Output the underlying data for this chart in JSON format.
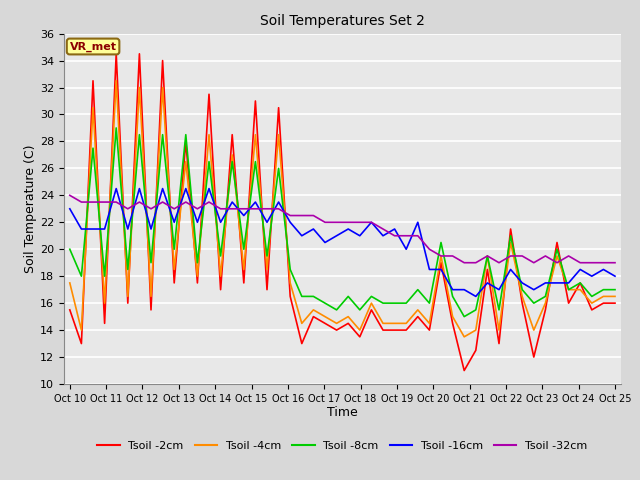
{
  "title": "Soil Temperatures Set 2",
  "xlabel": "Time",
  "ylabel": "Soil Temperature (C)",
  "ylim": [
    10,
    36
  ],
  "yticks": [
    10,
    12,
    14,
    16,
    18,
    20,
    22,
    24,
    26,
    28,
    30,
    32,
    34,
    36
  ],
  "xtick_labels": [
    "Oct 10",
    "Oct 11",
    "Oct 12",
    "Oct 13",
    "Oct 14",
    "Oct 15",
    "Oct 16",
    "Oct 17",
    "Oct 18",
    "Oct 19",
    "Oct 20",
    "Oct 21",
    "Oct 22",
    "Oct 23",
    "Oct 24",
    "Oct 25"
  ],
  "annotation_text": "VR_met",
  "annotation_color": "#8B0000",
  "annotation_bg": "#FFFF99",
  "annotation_border": "#8B6914",
  "line_colors": [
    "#FF0000",
    "#FF8C00",
    "#00CC00",
    "#0000FF",
    "#AA00AA"
  ],
  "line_labels": [
    "Tsoil -2cm",
    "Tsoil -4cm",
    "Tsoil -8cm",
    "Tsoil -16cm",
    "Tsoil -32cm"
  ],
  "background_color": "#D8D8D8",
  "plot_bg": "#E8E8E8",
  "tsoil_2cm": [
    15.5,
    13.0,
    32.5,
    14.5,
    34.5,
    16.0,
    34.5,
    15.5,
    34.0,
    17.5,
    28.0,
    17.5,
    31.5,
    17.0,
    28.5,
    17.5,
    31.0,
    17.0,
    30.5,
    16.5,
    13.0,
    15.0,
    14.5,
    14.0,
    14.5,
    13.5,
    15.5,
    14.0,
    14.0,
    14.0,
    15.0,
    14.0,
    19.0,
    14.5,
    11.0,
    12.5,
    18.5,
    13.0,
    21.5,
    16.0,
    12.0,
    15.5,
    20.5,
    16.0,
    17.5,
    15.5,
    16.0,
    16.0
  ],
  "tsoil_4cm": [
    17.5,
    14.0,
    30.5,
    16.0,
    32.5,
    16.5,
    32.0,
    16.5,
    32.0,
    18.5,
    26.5,
    18.0,
    28.5,
    18.0,
    27.0,
    18.5,
    28.5,
    18.5,
    28.5,
    17.5,
    14.5,
    15.5,
    15.0,
    14.5,
    15.0,
    14.0,
    16.0,
    14.5,
    14.5,
    14.5,
    15.5,
    14.5,
    19.5,
    15.0,
    13.5,
    14.0,
    19.5,
    14.0,
    20.5,
    16.5,
    14.0,
    16.0,
    19.5,
    17.0,
    17.0,
    16.0,
    16.5,
    16.5
  ],
  "tsoil_8cm": [
    20.0,
    18.0,
    27.5,
    18.0,
    29.0,
    18.5,
    28.5,
    19.0,
    28.5,
    20.0,
    28.5,
    19.0,
    26.5,
    19.5,
    26.5,
    20.0,
    26.5,
    19.5,
    26.0,
    18.5,
    16.5,
    16.5,
    16.0,
    15.5,
    16.5,
    15.5,
    16.5,
    16.0,
    16.0,
    16.0,
    17.0,
    16.0,
    20.5,
    16.5,
    15.0,
    15.5,
    19.5,
    15.5,
    21.0,
    17.0,
    16.0,
    16.5,
    20.0,
    17.0,
    17.5,
    16.5,
    17.0,
    17.0
  ],
  "tsoil_16cm": [
    23.0,
    21.5,
    21.5,
    21.5,
    24.5,
    21.5,
    24.5,
    21.5,
    24.5,
    22.0,
    24.5,
    22.0,
    24.5,
    22.0,
    23.5,
    22.5,
    23.5,
    22.0,
    23.5,
    22.0,
    21.0,
    21.5,
    20.5,
    21.0,
    21.5,
    21.0,
    22.0,
    21.0,
    21.5,
    20.0,
    22.0,
    18.5,
    18.5,
    17.0,
    17.0,
    16.5,
    17.5,
    17.0,
    18.5,
    17.5,
    17.0,
    17.5,
    17.5,
    17.5,
    18.5,
    18.0,
    18.5,
    18.0
  ],
  "tsoil_32cm": [
    24.0,
    23.5,
    23.5,
    23.5,
    23.5,
    23.0,
    23.5,
    23.0,
    23.5,
    23.0,
    23.5,
    23.0,
    23.5,
    23.0,
    23.0,
    23.0,
    23.0,
    23.0,
    23.0,
    22.5,
    22.5,
    22.5,
    22.0,
    22.0,
    22.0,
    22.0,
    22.0,
    21.5,
    21.0,
    21.0,
    21.0,
    20.0,
    19.5,
    19.5,
    19.0,
    19.0,
    19.5,
    19.0,
    19.5,
    19.5,
    19.0,
    19.5,
    19.0,
    19.5,
    19.0,
    19.0,
    19.0,
    19.0
  ]
}
